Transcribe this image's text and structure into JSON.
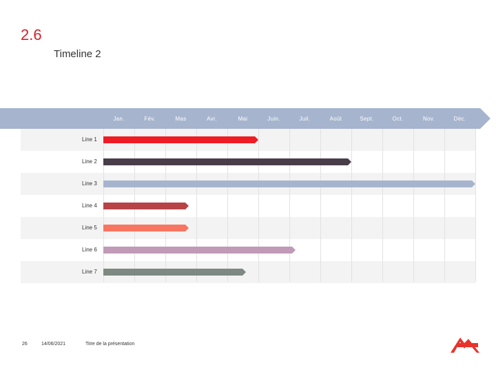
{
  "header": {
    "section_number": "2.6",
    "title": "Timeline 2"
  },
  "timeline": {
    "band_color": "#a6b4ce",
    "months": [
      "Jan.",
      "Fév.",
      "Mas",
      "Avr.",
      "Mai",
      "Juin.",
      "Juil.",
      "Août",
      "Sept.",
      "Oct.",
      "Nov.",
      "Déc."
    ],
    "rows": [
      {
        "label": "Line 1",
        "end_month": 5.0,
        "color": "#ee1c25"
      },
      {
        "label": "Line 2",
        "end_month": 8.0,
        "color": "#4a3d4a"
      },
      {
        "label": "Line 3",
        "end_month": 12.0,
        "color": "#a6b4ce"
      },
      {
        "label": "Line 4",
        "end_month": 2.75,
        "color": "#b84347"
      },
      {
        "label": "Line 5",
        "end_month": 2.75,
        "color": "#f87561"
      },
      {
        "label": "Line 6",
        "end_month": 6.2,
        "color": "#c09ab7"
      },
      {
        "label": "Line 7",
        "end_month": 4.6,
        "color": "#7d8981"
      }
    ]
  },
  "footer": {
    "page_number": "26",
    "date": "14/06/2021",
    "presentation_title": "Titre de la présentation"
  },
  "logo": {
    "color": "#e8332a"
  }
}
